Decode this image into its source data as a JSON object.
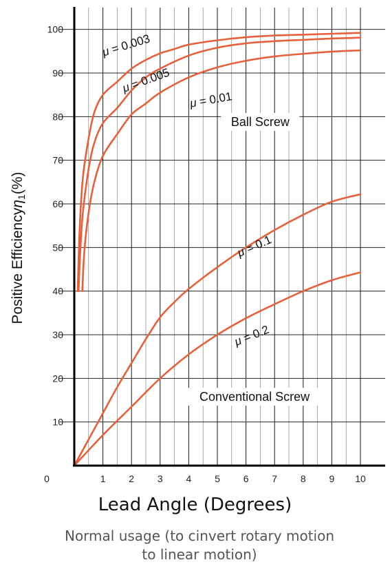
{
  "chart_data": {
    "type": "line",
    "xlabel": "Lead Angle (Degrees)",
    "ylabel": "Positive Efficiency",
    "ylabel_symbol": "η",
    "ylabel_subscript": "1",
    "ylabel_unit": "(%)",
    "xlim": [
      0,
      10
    ],
    "ylim": [
      0,
      105
    ],
    "x_ticks": [
      "0",
      "1",
      "2",
      "3",
      "4",
      "5",
      "6",
      "7",
      "8",
      "9",
      "10"
    ],
    "y_ticks": [
      "10",
      "20",
      "30",
      "40",
      "50",
      "60",
      "70",
      "80",
      "90",
      "100"
    ],
    "grid": true,
    "regions": [
      {
        "label": "Ball Screw",
        "x": 6.5,
        "y": 78
      },
      {
        "label": "Conventional Screw",
        "x": 6.3,
        "y": 15
      }
    ],
    "series": [
      {
        "name": "μ = 0.003",
        "x": [
          0.12,
          0.15,
          0.2,
          0.3,
          0.5,
          0.7,
          1,
          1.5,
          2,
          2.5,
          3,
          3.5,
          4,
          5,
          6,
          7,
          8,
          9,
          10
        ],
        "y": [
          40,
          47,
          56,
          66,
          75,
          81,
          85,
          88,
          91,
          93,
          94.5,
          95.5,
          96.5,
          97.5,
          98.2,
          98.6,
          98.8,
          99,
          99.2
        ]
      },
      {
        "name": "μ = 0.005",
        "x": [
          0.15,
          0.2,
          0.3,
          0.5,
          0.7,
          1,
          1.5,
          2,
          2.5,
          3,
          4,
          5,
          6,
          7,
          8,
          9,
          10
        ],
        "y": [
          40,
          48,
          58,
          68,
          74,
          78.5,
          82,
          86,
          89,
          91,
          94,
          95.8,
          96.8,
          97.3,
          97.6,
          97.9,
          98.1
        ]
      },
      {
        "name": "μ = 0.01",
        "x": [
          0.28,
          0.35,
          0.5,
          0.7,
          1,
          1.5,
          2,
          2.5,
          3,
          4,
          5,
          6,
          7,
          8,
          9,
          10
        ],
        "y": [
          40,
          49,
          58,
          65,
          71,
          76,
          80.5,
          83,
          85.5,
          89,
          91.3,
          92.8,
          93.8,
          94.4,
          94.9,
          95.2
        ]
      },
      {
        "name": "μ = 0.1",
        "x": [
          0,
          0.5,
          1,
          1.5,
          2,
          2.5,
          3,
          3.5,
          4,
          5,
          6,
          7,
          8,
          9,
          10
        ],
        "y": [
          0,
          6,
          12,
          18,
          23.5,
          29,
          34,
          37.5,
          40.5,
          45.5,
          50,
          54,
          57.5,
          60.5,
          62.2
        ]
      },
      {
        "name": "μ = 0.2",
        "x": [
          0,
          1,
          2,
          3,
          4,
          5,
          6,
          7,
          8,
          9,
          10
        ],
        "y": [
          0,
          7,
          13.5,
          20,
          25.5,
          30,
          33.8,
          37,
          40,
          42.5,
          44.3
        ]
      }
    ]
  },
  "caption": "Normal usage (to cinvert rotary motion to linear motion)"
}
